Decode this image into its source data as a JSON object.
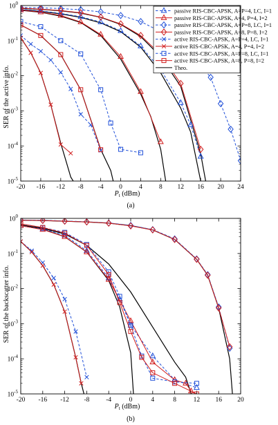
{
  "chart_data": [
    {
      "type": "line",
      "panel": "(a)",
      "xlabel": "P_t (dBm)",
      "ylabel": "SER of the active info.",
      "ylog": true,
      "xlim": [
        -20,
        24
      ],
      "ylim_exp": [
        -5,
        0
      ],
      "xticks": [
        "-20",
        "-16",
        "-12",
        "-8",
        "-4",
        "0",
        "4",
        "8",
        "12",
        "16",
        "20",
        "24"
      ],
      "yticks_exp": [
        0,
        -1,
        -2,
        -3,
        -4,
        -5
      ],
      "legend_position": "top-right",
      "legend": [
        {
          "label": "passive RIS-CBC-APSK, A=P=4, LC, I=1",
          "color": "#1f4fd8",
          "dash": true,
          "marker": "triangle"
        },
        {
          "label": "passive RIS-CBC-APSK, A=4, P=4, I=2",
          "color": "#d01c1c",
          "dash": false,
          "marker": "triangle"
        },
        {
          "label": "passive RIS-CBC-APSK, A=P=8, LC, I=1",
          "color": "#1f4fd8",
          "dash": true,
          "marker": "diamond"
        },
        {
          "label": "passive RIS-CBC-APSK, A=8, P=8, I=2",
          "color": "#d01c1c",
          "dash": false,
          "marker": "diamond"
        },
        {
          "label": "active RIS-CBC-APSK, A=P=4, LC, I=1",
          "color": "#1f4fd8",
          "dash": true,
          "marker": "x"
        },
        {
          "label": "active RIS-CBC-APSK, A=4, P=4, I=2",
          "color": "#d01c1c",
          "dash": false,
          "marker": "x"
        },
        {
          "label": "active RIS-CBC-APSK, A=P=8, LC, I=1",
          "color": "#1f4fd8",
          "dash": true,
          "marker": "square"
        },
        {
          "label": "active RIS-CBC-APSK, A=8, P=8, I=2",
          "color": "#d01c1c",
          "dash": false,
          "marker": "square"
        },
        {
          "label": "Theo.",
          "color": "#000000",
          "dash": false,
          "marker": "none"
        }
      ],
      "series": [
        {
          "color": "#1f4fd8",
          "dash": true,
          "marker": "triangle",
          "x": [
            -20,
            -16,
            -12,
            -8,
            -4,
            0,
            4,
            8,
            12,
            14,
            16
          ],
          "y": [
            0.78,
            0.7,
            0.6,
            0.48,
            0.34,
            0.19,
            0.07,
            0.015,
            0.0017,
            0.0004,
            5e-05
          ]
        },
        {
          "color": "#d01c1c",
          "dash": false,
          "marker": "triangle",
          "x": [
            -20,
            -16,
            -12,
            -8,
            -4,
            0,
            4,
            8
          ],
          "y": [
            0.74,
            0.65,
            0.52,
            0.34,
            0.15,
            0.035,
            0.0035,
            0.00013
          ]
        },
        {
          "color": "#1f4fd8",
          "dash": true,
          "marker": "diamond",
          "x": [
            -20,
            -16,
            -12,
            -8,
            -4,
            0,
            4,
            8,
            12,
            16,
            18,
            20,
            22,
            24
          ],
          "y": [
            0.88,
            0.86,
            0.82,
            0.76,
            0.66,
            0.52,
            0.35,
            0.18,
            0.07,
            0.02,
            0.009,
            0.0016,
            0.0003,
            3.8e-05
          ]
        },
        {
          "color": "#d01c1c",
          "dash": false,
          "marker": "diamond",
          "x": [
            -20,
            -16,
            -12,
            -8,
            -4,
            0,
            4,
            8,
            12,
            16
          ],
          "y": [
            0.84,
            0.79,
            0.72,
            0.62,
            0.47,
            0.3,
            0.14,
            0.04,
            0.006,
            8e-05
          ]
        },
        {
          "color": "#1f4fd8",
          "dash": true,
          "marker": "x",
          "x": [
            -20,
            -18,
            -16,
            -14,
            -12,
            -10,
            -8,
            -6,
            -4
          ],
          "y": [
            0.14,
            0.08,
            0.05,
            0.028,
            0.0125,
            0.0042,
            0.0008,
            0.0004,
            7.5e-05
          ]
        },
        {
          "color": "#d01c1c",
          "dash": false,
          "marker": "x",
          "x": [
            -20,
            -18,
            -16,
            -14,
            -12,
            -10
          ],
          "y": [
            0.12,
            0.045,
            0.012,
            0.0015,
            0.00011,
            6.2e-05
          ]
        },
        {
          "color": "#1f4fd8",
          "dash": true,
          "marker": "square",
          "x": [
            -20,
            -16,
            -12,
            -8,
            -4,
            -2,
            0,
            4
          ],
          "y": [
            0.35,
            0.25,
            0.1,
            0.042,
            0.004,
            0.00045,
            8e-05,
            6.4e-05
          ]
        },
        {
          "color": "#d01c1c",
          "dash": false,
          "marker": "square",
          "x": [
            -20,
            -16,
            -12,
            -8,
            -4
          ],
          "y": [
            0.28,
            0.14,
            0.04,
            0.004,
            7.8e-05
          ]
        }
      ],
      "theory": [
        {
          "x": [
            -20,
            -16,
            -12,
            -8,
            -4,
            0,
            4,
            8,
            12,
            14,
            16
          ],
          "y": [
            0.76,
            0.68,
            0.58,
            0.46,
            0.32,
            0.18,
            0.065,
            0.012,
            0.0012,
            0.00025,
            1e-05
          ]
        },
        {
          "x": [
            -20,
            -16,
            -12,
            -8,
            -4,
            0,
            4,
            6,
            8,
            9
          ],
          "y": [
            0.73,
            0.64,
            0.5,
            0.33,
            0.14,
            0.03,
            0.003,
            0.0007,
            8e-05,
            1e-05
          ]
        },
        {
          "x": [
            -20,
            -16,
            -12,
            -8,
            -4,
            0,
            4,
            8,
            12,
            16,
            17
          ],
          "y": [
            0.83,
            0.78,
            0.71,
            0.61,
            0.46,
            0.29,
            0.13,
            0.035,
            0.005,
            6e-05,
            1e-05
          ]
        },
        {
          "x": [
            -20,
            -18,
            -16,
            -14,
            -12,
            -11,
            -10,
            -9.5
          ],
          "y": [
            0.12,
            0.045,
            0.012,
            0.0015,
            0.00012,
            4e-05,
            1.3e-05,
            1e-05
          ]
        },
        {
          "x": [
            -20,
            -16,
            -12,
            -8,
            -4,
            -2,
            -1.5
          ],
          "y": [
            0.28,
            0.14,
            0.04,
            0.004,
            8e-05,
            2e-05,
            1e-05
          ]
        }
      ]
    },
    {
      "type": "line",
      "panel": "(b)",
      "xlabel": "P_t (dBm)",
      "ylabel": "SER of the backscatter info.",
      "ylog": true,
      "xlim": [
        -20,
        20
      ],
      "ylim_exp": [
        -5,
        0
      ],
      "xticks": [
        "-20",
        "-16",
        "-12",
        "-8",
        "-4",
        "0",
        "4",
        "8",
        "12",
        "16",
        "20"
      ],
      "yticks_exp": [
        0,
        -1,
        -2,
        -3,
        -4,
        -5
      ],
      "series": [
        {
          "color": "#1f4fd8",
          "dash": true,
          "marker": "triangle",
          "x": [
            -20,
            -16,
            -12,
            -8,
            -4,
            -2,
            0,
            4,
            8,
            12
          ],
          "y": [
            0.62,
            0.5,
            0.33,
            0.12,
            0.02,
            0.005,
            0.0009,
            0.00012,
            2.5e-05,
            1.5e-05
          ]
        },
        {
          "color": "#d01c1c",
          "dash": false,
          "marker": "triangle",
          "x": [
            -20,
            -16,
            -12,
            -8,
            -4,
            0,
            4,
            8,
            10,
            11
          ],
          "y": [
            0.62,
            0.48,
            0.3,
            0.11,
            0.018,
            0.0012,
            8e-05,
            2.5e-05,
            2e-05,
            1.2e-05
          ]
        },
        {
          "color": "#1f4fd8",
          "dash": true,
          "marker": "diamond",
          "x": [
            -20,
            -16,
            -12,
            -8,
            -4,
            0,
            4,
            8,
            12,
            14,
            16,
            18
          ],
          "y": [
            0.9,
            0.88,
            0.84,
            0.8,
            0.74,
            0.63,
            0.48,
            0.26,
            0.07,
            0.025,
            0.003,
            0.0002
          ]
        },
        {
          "color": "#d01c1c",
          "dash": false,
          "marker": "diamond",
          "x": [
            -20,
            -16,
            -12,
            -8,
            -4,
            0,
            4,
            8,
            12,
            14,
            16,
            18
          ],
          "y": [
            0.88,
            0.87,
            0.83,
            0.79,
            0.73,
            0.61,
            0.47,
            0.25,
            0.068,
            0.024,
            0.0028,
            0.00022
          ]
        },
        {
          "color": "#1f4fd8",
          "dash": true,
          "marker": "x",
          "x": [
            -20,
            -18,
            -16,
            -14,
            -12,
            -10,
            -8
          ],
          "y": [
            0.22,
            0.12,
            0.055,
            0.02,
            0.005,
            0.0006,
            3e-05
          ]
        },
        {
          "color": "#d01c1c",
          "dash": false,
          "marker": "x",
          "x": [
            -20,
            -18,
            -16,
            -14,
            -12,
            -10,
            -9
          ],
          "y": [
            0.22,
            0.11,
            0.045,
            0.013,
            0.0022,
            0.00011,
            2e-05
          ]
        },
        {
          "color": "#1f4fd8",
          "dash": true,
          "marker": "square",
          "x": [
            -20,
            -16,
            -12,
            -8,
            -4,
            -2,
            0,
            2,
            4,
            8,
            12
          ],
          "y": [
            0.7,
            0.55,
            0.4,
            0.18,
            0.03,
            0.006,
            0.0009,
            0.00012,
            2.8e-05,
            2.2e-05,
            2e-05
          ]
        },
        {
          "color": "#d01c1c",
          "dash": false,
          "marker": "square",
          "x": [
            -20,
            -16,
            -12,
            -8,
            -4,
            -2,
            0,
            2,
            4,
            8,
            12
          ],
          "y": [
            0.7,
            0.55,
            0.38,
            0.17,
            0.025,
            0.004,
            0.0006,
            0.00011,
            4e-05,
            2e-05,
            1e-05
          ]
        }
      ],
      "theory": [
        {
          "x": [
            -20,
            -16,
            -12,
            -8,
            -4,
            -2,
            0,
            0.5
          ],
          "y": [
            0.62,
            0.49,
            0.3,
            0.11,
            0.017,
            0.003,
            0.00015,
            1e-05
          ]
        },
        {
          "x": [
            -20,
            -16,
            -12,
            -8,
            -4,
            0,
            4,
            8,
            10,
            11
          ],
          "y": [
            0.65,
            0.52,
            0.36,
            0.17,
            0.05,
            0.008,
            0.0008,
            8e-05,
            3e-05,
            1e-05
          ]
        },
        {
          "x": [
            -20,
            -16,
            -12,
            -8,
            -4,
            0,
            4,
            8,
            12,
            14,
            16,
            18,
            18.5
          ],
          "y": [
            0.89,
            0.87,
            0.83,
            0.79,
            0.73,
            0.62,
            0.47,
            0.25,
            0.068,
            0.024,
            0.0028,
            0.0001,
            1e-05
          ]
        },
        {
          "x": [
            -20,
            -18,
            -16,
            -14,
            -12,
            -10,
            -9,
            -8.5
          ],
          "y": [
            0.22,
            0.11,
            0.045,
            0.013,
            0.0022,
            0.00011,
            2e-05,
            1e-05
          ]
        }
      ]
    }
  ],
  "labels": {
    "xlabel_a_main": "P",
    "xlabel_a_sub": "t",
    "xlabel_a_unit": " (dBm)",
    "ylabel_a": "SER of the active info.",
    "caption_a": "(a)",
    "xlabel_b_main": "P",
    "xlabel_b_sub": "t",
    "xlabel_b_unit": " (dBm)",
    "ylabel_b": "SER of the backscatter info.",
    "caption_b": "(b)"
  },
  "tick_base": "10"
}
